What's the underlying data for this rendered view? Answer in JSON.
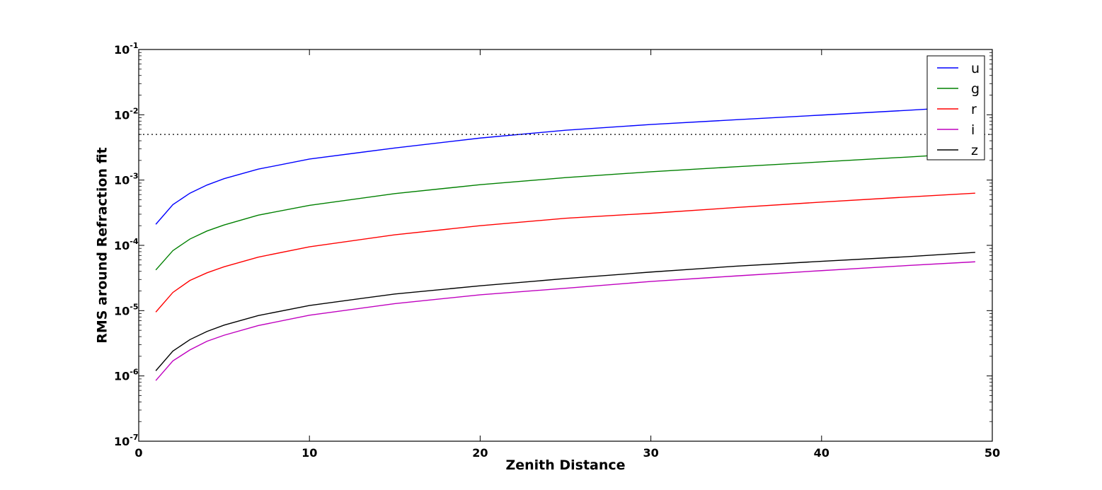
{
  "chart_data": {
    "type": "line",
    "title": "",
    "xlabel": "Zenith Distance",
    "ylabel": "RMS around Refraction fit",
    "xlim": [
      0,
      50
    ],
    "ylim": [
      1e-07,
      0.1
    ],
    "yscale": "log",
    "xticks": [
      0,
      10,
      20,
      30,
      40,
      50
    ],
    "yticks": [
      {
        "value": 1e-07,
        "base": "10",
        "exp": "-7"
      },
      {
        "value": 1e-06,
        "base": "10",
        "exp": "-6"
      },
      {
        "value": 1e-05,
        "base": "10",
        "exp": "-5"
      },
      {
        "value": 0.0001,
        "base": "10",
        "exp": "-4"
      },
      {
        "value": 0.001,
        "base": "10",
        "exp": "-3"
      },
      {
        "value": 0.01,
        "base": "10",
        "exp": "-2"
      },
      {
        "value": 0.1,
        "base": "10",
        "exp": "-1"
      }
    ],
    "grid": false,
    "legend_position": "top-right",
    "reference_line": {
      "y": 0.005,
      "style": "dotted",
      "color": "#000000"
    },
    "series": [
      {
        "name": "u",
        "color": "#0000ff",
        "points": [
          [
            1,
            0.00021
          ],
          [
            2,
            0.00042
          ],
          [
            3,
            0.00063
          ],
          [
            4,
            0.00084
          ],
          [
            5,
            0.00105
          ],
          [
            7,
            0.00147
          ],
          [
            10,
            0.0021
          ],
          [
            15,
            0.0031
          ],
          [
            20,
            0.0044
          ],
          [
            25,
            0.0058
          ],
          [
            30,
            0.0071
          ],
          [
            35,
            0.0084
          ],
          [
            40,
            0.0099
          ],
          [
            45,
            0.0117
          ],
          [
            49,
            0.0135
          ]
        ]
      },
      {
        "name": "g",
        "color": "#008000",
        "points": [
          [
            1,
            4.2e-05
          ],
          [
            2,
            8.3e-05
          ],
          [
            3,
            0.000125
          ],
          [
            4,
            0.000166
          ],
          [
            5,
            0.000205
          ],
          [
            7,
            0.00029
          ],
          [
            10,
            0.00041
          ],
          [
            15,
            0.00062
          ],
          [
            20,
            0.00085
          ],
          [
            25,
            0.00109
          ],
          [
            30,
            0.00134
          ],
          [
            35,
            0.0016
          ],
          [
            40,
            0.0019
          ],
          [
            45,
            0.00225
          ],
          [
            49,
            0.0026
          ]
        ]
      },
      {
        "name": "r",
        "color": "#ff0000",
        "points": [
          [
            1,
            9.5e-06
          ],
          [
            2,
            1.9e-05
          ],
          [
            3,
            2.9e-05
          ],
          [
            4,
            3.8e-05
          ],
          [
            5,
            4.7e-05
          ],
          [
            7,
            6.6e-05
          ],
          [
            10,
            9.5e-05
          ],
          [
            15,
            0.000145
          ],
          [
            20,
            0.0002
          ],
          [
            25,
            0.00026
          ],
          [
            30,
            0.00031
          ],
          [
            35,
            0.00038
          ],
          [
            40,
            0.00046
          ],
          [
            45,
            0.00055
          ],
          [
            49,
            0.00063
          ]
        ]
      },
      {
        "name": "i",
        "color": "#bf00bf",
        "points": [
          [
            1,
            8.5e-07
          ],
          [
            2,
            1.7e-06
          ],
          [
            3,
            2.5e-06
          ],
          [
            4,
            3.4e-06
          ],
          [
            5,
            4.2e-06
          ],
          [
            7,
            5.9e-06
          ],
          [
            10,
            8.5e-06
          ],
          [
            15,
            1.28e-05
          ],
          [
            20,
            1.75e-05
          ],
          [
            25,
            2.2e-05
          ],
          [
            30,
            2.8e-05
          ],
          [
            35,
            3.4e-05
          ],
          [
            40,
            4.1e-05
          ],
          [
            45,
            4.9e-05
          ],
          [
            49,
            5.6e-05
          ]
        ]
      },
      {
        "name": "z",
        "color": "#000000",
        "points": [
          [
            1,
            1.2e-06
          ],
          [
            2,
            2.4e-06
          ],
          [
            3,
            3.6e-06
          ],
          [
            4,
            4.8e-06
          ],
          [
            5,
            6e-06
          ],
          [
            7,
            8.4e-06
          ],
          [
            10,
            1.2e-05
          ],
          [
            15,
            1.8e-05
          ],
          [
            20,
            2.4e-05
          ],
          [
            25,
            3.1e-05
          ],
          [
            30,
            3.9e-05
          ],
          [
            35,
            4.8e-05
          ],
          [
            40,
            5.7e-05
          ],
          [
            45,
            6.7e-05
          ],
          [
            49,
            7.8e-05
          ]
        ]
      }
    ]
  }
}
